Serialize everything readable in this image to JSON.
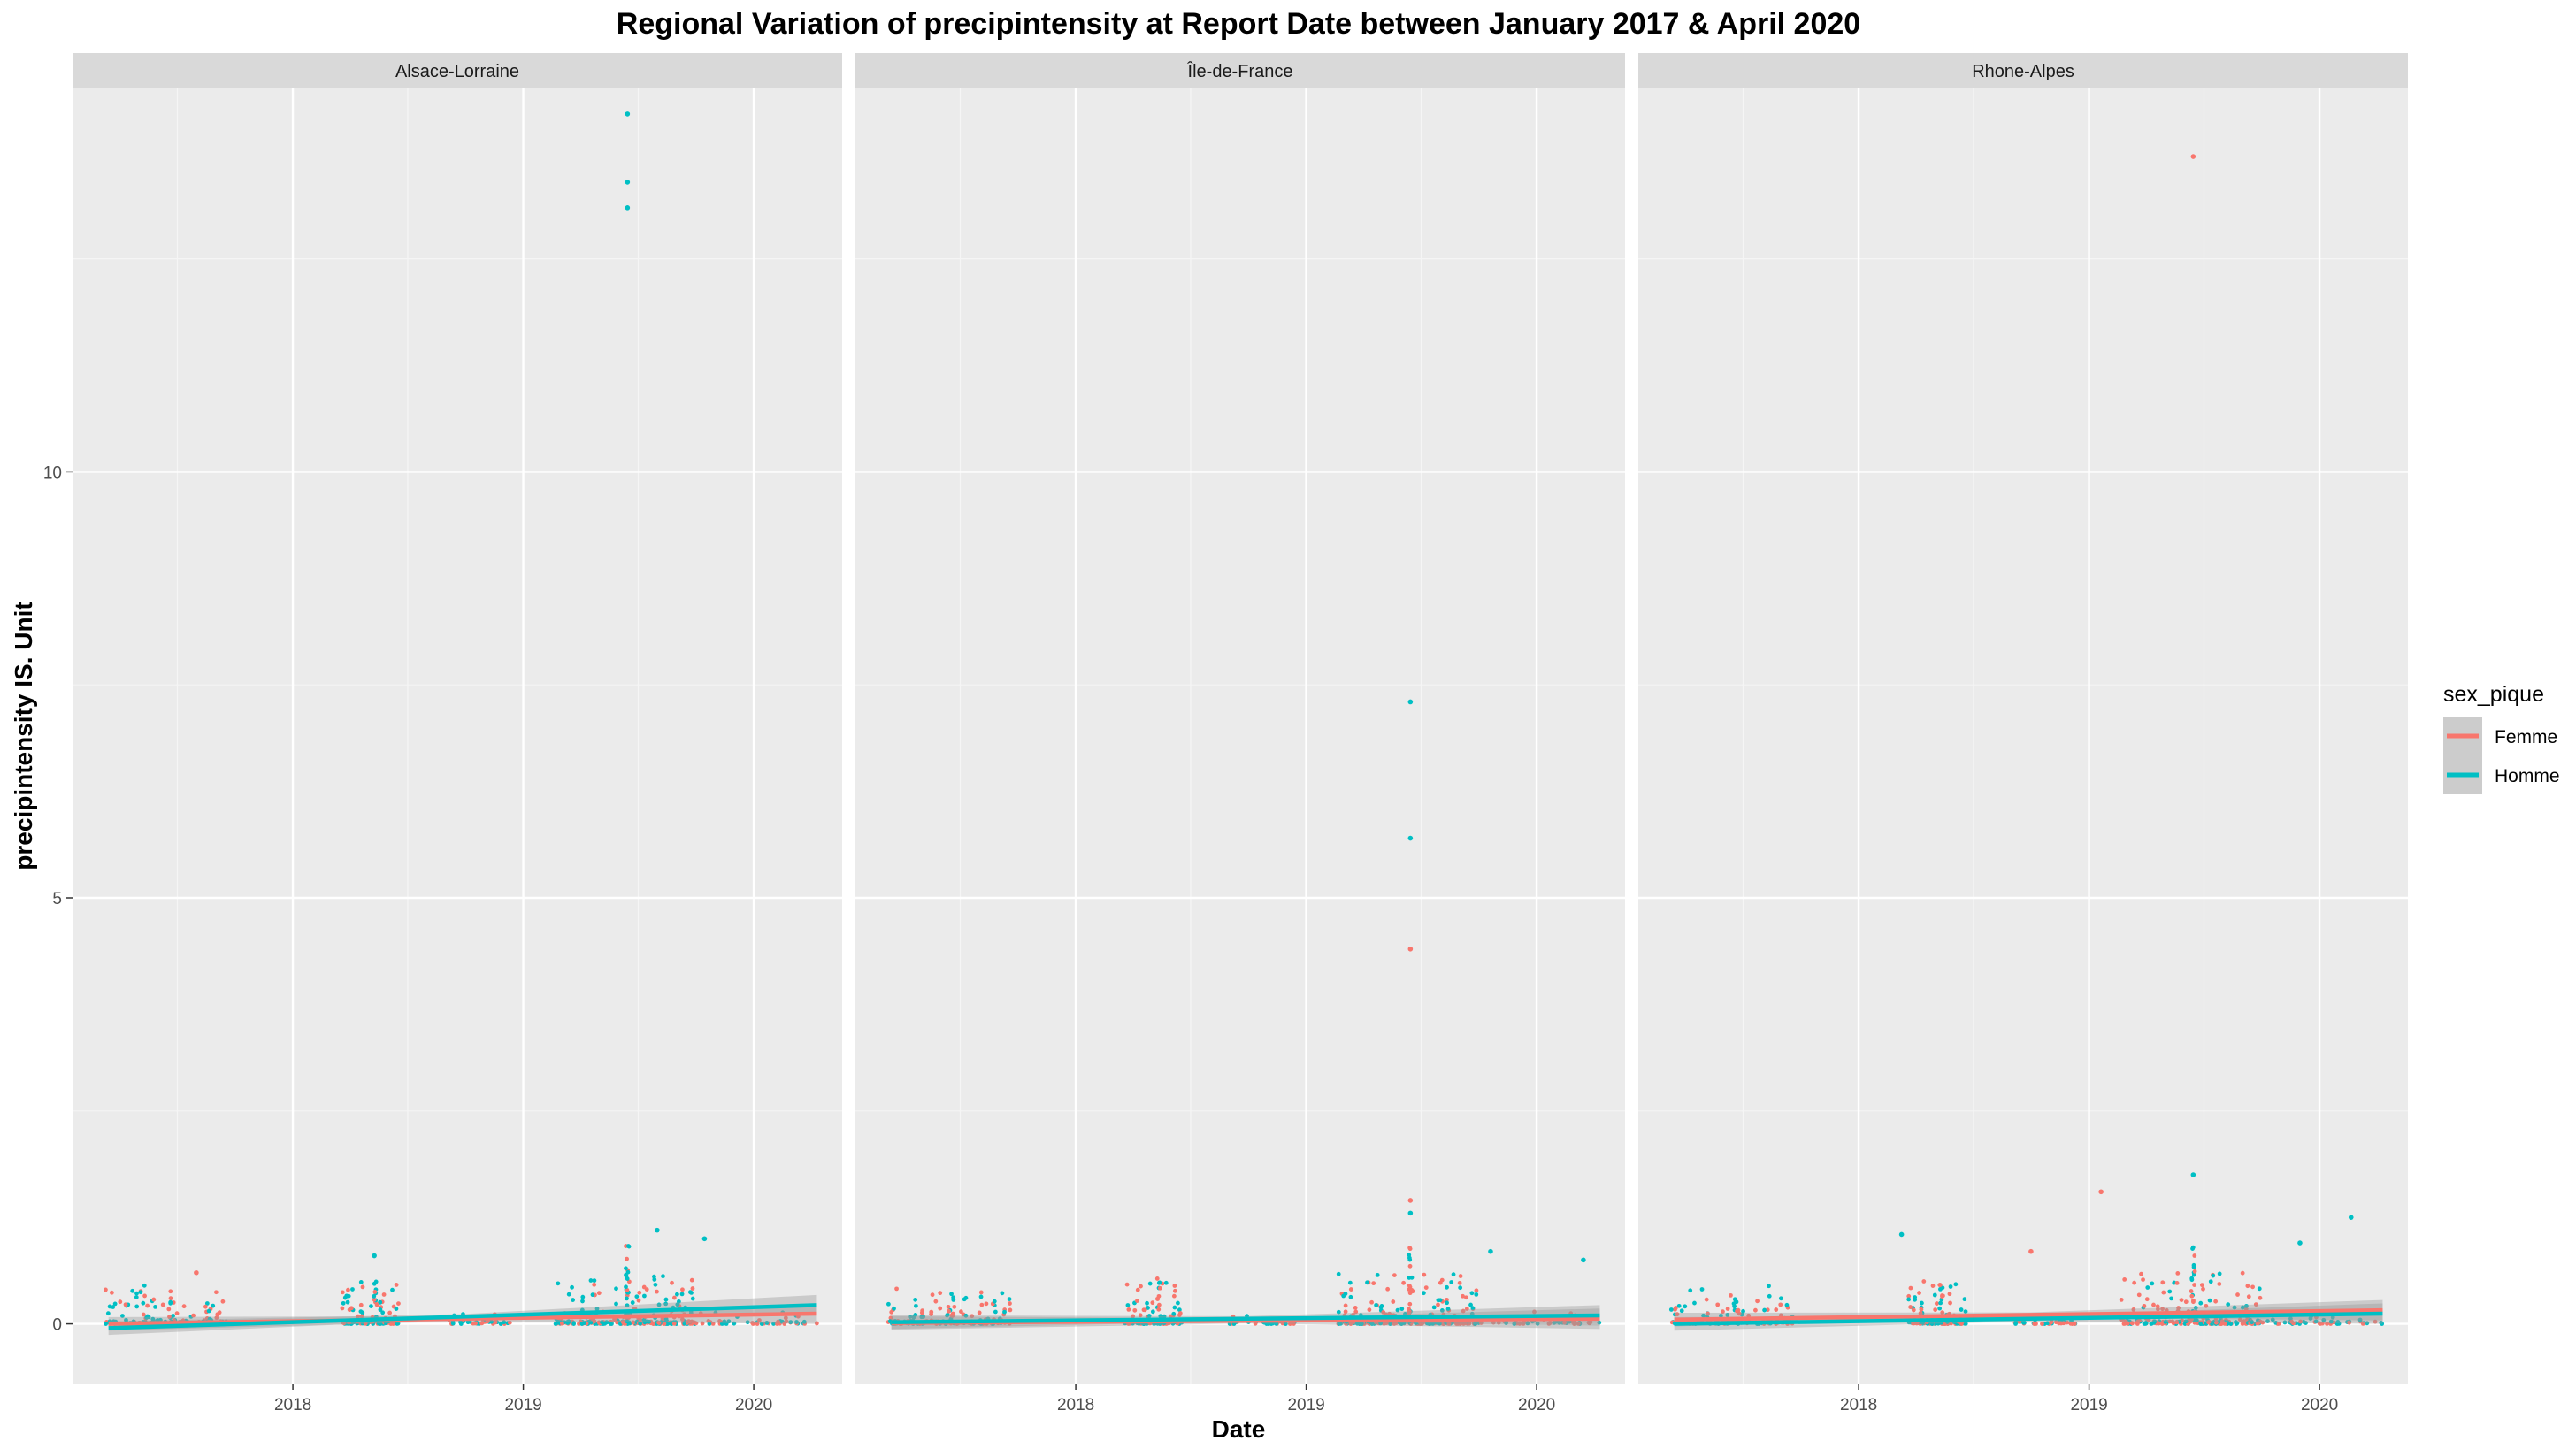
{
  "chart_data": {
    "type": "scatter",
    "title": "Regional Variation of  precipintensity  at Report Date between January 2017 & April 2020",
    "xlabel": "Date",
    "ylabel": "precipintensity  IS. Unit",
    "x_range": [
      "2017-01-17",
      "2020-05-20"
    ],
    "ylim": [
      -0.7,
      14.5
    ],
    "y_ticks": [
      0,
      5,
      10
    ],
    "x_ticks": [
      "2018",
      "2019",
      "2020"
    ],
    "grid": true,
    "legend": {
      "title": "sex_pique",
      "position": "right",
      "entries": [
        {
          "label": "Femme",
          "color": "#F8766D"
        },
        {
          "label": "Homme",
          "color": "#00BFC4"
        }
      ]
    },
    "panels": [
      {
        "name": "Alsace-Lorraine",
        "trend": [
          {
            "series": "Femme",
            "start": [
              "2017-03-15",
              0.0
            ],
            "end": [
              "2020-04-10",
              0.12
            ]
          },
          {
            "series": "Homme",
            "start": [
              "2017-03-15",
              -0.05
            ],
            "end": [
              "2020-04-10",
              0.22
            ]
          }
        ],
        "highlights": [
          {
            "series": "Homme",
            "date": "2019-06-15",
            "value": 14.2
          },
          {
            "series": "Homme",
            "date": "2019-06-15",
            "value": 13.4
          },
          {
            "series": "Homme",
            "date": "2019-06-15",
            "value": 13.1
          },
          {
            "series": "Homme",
            "date": "2019-08-01",
            "value": 1.1
          },
          {
            "series": "Homme",
            "date": "2019-10-15",
            "value": 1.0
          },
          {
            "series": "Homme",
            "date": "2018-05-10",
            "value": 0.8
          },
          {
            "series": "Femme",
            "date": "2017-08-01",
            "value": 0.6
          }
        ]
      },
      {
        "name": "Île-de-France",
        "trend": [
          {
            "series": "Femme",
            "start": [
              "2017-03-15",
              0.01
            ],
            "end": [
              "2020-04-10",
              0.06
            ]
          },
          {
            "series": "Homme",
            "start": [
              "2017-03-15",
              0.02
            ],
            "end": [
              "2020-04-10",
              0.1
            ]
          }
        ],
        "highlights": [
          {
            "series": "Homme",
            "date": "2019-06-15",
            "value": 7.3
          },
          {
            "series": "Homme",
            "date": "2019-06-15",
            "value": 5.7
          },
          {
            "series": "Femme",
            "date": "2019-06-15",
            "value": 4.4
          },
          {
            "series": "Femme",
            "date": "2019-06-15",
            "value": 1.45
          },
          {
            "series": "Homme",
            "date": "2019-06-15",
            "value": 1.3
          },
          {
            "series": "Homme",
            "date": "2019-10-20",
            "value": 0.85
          },
          {
            "series": "Homme",
            "date": "2020-03-15",
            "value": 0.75
          }
        ]
      },
      {
        "name": "Rhone-Alpes",
        "trend": [
          {
            "series": "Femme",
            "start": [
              "2017-03-15",
              0.05
            ],
            "end": [
              "2020-04-10",
              0.16
            ]
          },
          {
            "series": "Homme",
            "start": [
              "2017-03-15",
              0.0
            ],
            "end": [
              "2020-04-10",
              0.12
            ]
          }
        ],
        "highlights": [
          {
            "series": "Femme",
            "date": "2019-06-15",
            "value": 13.7
          },
          {
            "series": "Homme",
            "date": "2019-06-15",
            "value": 1.75
          },
          {
            "series": "Femme",
            "date": "2019-01-20",
            "value": 1.55
          },
          {
            "series": "Homme",
            "date": "2020-02-20",
            "value": 1.25
          },
          {
            "series": "Homme",
            "date": "2018-03-10",
            "value": 1.05
          },
          {
            "series": "Homme",
            "date": "2019-12-01",
            "value": 0.95
          },
          {
            "series": "Femme",
            "date": "2018-10-01",
            "value": 0.85
          }
        ]
      }
    ]
  }
}
